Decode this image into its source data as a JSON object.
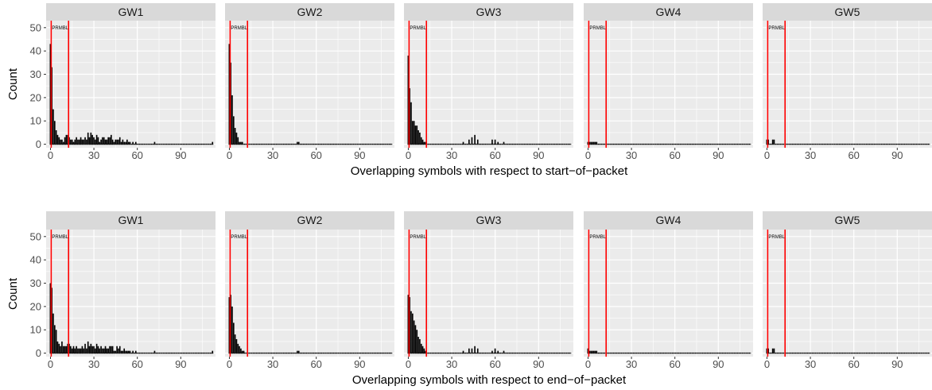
{
  "chart_data": [
    {
      "type": "bar",
      "xlabel": "Overlapping symbols with respect to start−of−packet",
      "ylabel": "Count",
      "facets": [
        "GW1",
        "GW2",
        "GW3",
        "GW4",
        "GW5"
      ],
      "xlim": [
        -3,
        114
      ],
      "ylim": [
        -1.5,
        53
      ],
      "xticks": [
        0,
        30,
        60,
        90
      ],
      "yticks": [
        0,
        10,
        20,
        30,
        40,
        50
      ],
      "vlines": [
        {
          "x": 0.5,
          "label": "PRMBL"
        },
        {
          "x": 12.5
        }
      ],
      "vline_color": "#ff0000",
      "grid": true,
      "panel_background": "#ebebeb",
      "strip_background": "#d9d9d9",
      "series": [
        {
          "facet": "GW1",
          "x": [
            0,
            1,
            2,
            3,
            4,
            5,
            6,
            7,
            8,
            9,
            10,
            11,
            12,
            13,
            14,
            15,
            16,
            17,
            18,
            19,
            20,
            21,
            22,
            23,
            24,
            25,
            26,
            27,
            28,
            29,
            30,
            31,
            32,
            33,
            34,
            35,
            36,
            37,
            38,
            39,
            40,
            41,
            42,
            43,
            44,
            45,
            46,
            47,
            48,
            49,
            50,
            51,
            52,
            53,
            54,
            55,
            56,
            57,
            58,
            59,
            60,
            72,
            112
          ],
          "values": [
            43,
            33,
            15,
            10,
            6,
            4,
            3,
            2,
            2,
            1,
            3,
            4,
            4,
            3,
            2,
            2,
            1,
            2,
            3,
            2,
            2,
            3,
            2,
            2,
            3,
            2,
            5,
            3,
            5,
            4,
            3,
            2,
            4,
            3,
            1,
            2,
            3,
            3,
            2,
            2,
            3,
            3,
            4,
            2,
            1,
            2,
            2,
            2,
            3,
            1,
            2,
            1,
            1,
            2,
            1,
            1,
            0,
            1,
            0,
            1,
            0,
            1,
            1
          ]
        },
        {
          "facet": "GW2",
          "x": [
            0,
            1,
            2,
            3,
            4,
            5,
            6,
            7,
            8,
            9,
            47,
            48
          ],
          "values": [
            43,
            35,
            21,
            12,
            7,
            5,
            3,
            1,
            1,
            1,
            1,
            1
          ]
        },
        {
          "facet": "GW3",
          "x": [
            0,
            1,
            2,
            3,
            4,
            5,
            6,
            7,
            8,
            9,
            10,
            11,
            12,
            38,
            42,
            44,
            46,
            48,
            58,
            60,
            62,
            66
          ],
          "values": [
            38,
            24,
            18,
            10,
            10,
            8,
            8,
            6,
            5,
            3,
            2,
            1,
            1,
            1,
            2,
            3,
            4,
            2,
            2,
            2,
            1,
            1
          ]
        },
        {
          "facet": "GW4",
          "x": [
            0,
            1,
            2,
            3,
            4,
            5,
            6
          ],
          "values": [
            1,
            1,
            1,
            1,
            1,
            1,
            1
          ]
        },
        {
          "facet": "GW5",
          "x": [
            0,
            1,
            4,
            5
          ],
          "values": [
            2,
            2,
            2,
            2
          ]
        }
      ]
    },
    {
      "type": "bar",
      "xlabel": "Overlapping symbols with respect to end−of−packet",
      "ylabel": "Count",
      "facets": [
        "GW1",
        "GW2",
        "GW3",
        "GW4",
        "GW5"
      ],
      "xlim": [
        -3,
        114
      ],
      "ylim": [
        -1.5,
        53
      ],
      "xticks": [
        0,
        30,
        60,
        90
      ],
      "yticks": [
        0,
        10,
        20,
        30,
        40,
        50
      ],
      "vlines": [
        {
          "x": 0.5,
          "label": "PRMBL"
        },
        {
          "x": 12.5
        }
      ],
      "vline_color": "#ff0000",
      "grid": true,
      "panel_background": "#ebebeb",
      "strip_background": "#d9d9d9",
      "series": [
        {
          "facet": "GW1",
          "x": [
            0,
            1,
            2,
            3,
            4,
            5,
            6,
            7,
            8,
            9,
            10,
            11,
            12,
            13,
            14,
            15,
            16,
            17,
            18,
            19,
            20,
            21,
            22,
            23,
            24,
            25,
            26,
            27,
            28,
            29,
            30,
            31,
            32,
            33,
            34,
            35,
            36,
            37,
            38,
            39,
            40,
            41,
            42,
            43,
            44,
            45,
            46,
            47,
            48,
            49,
            50,
            51,
            52,
            53,
            54,
            55,
            56,
            57,
            58,
            59,
            60,
            72,
            112
          ],
          "values": [
            30,
            28,
            17,
            12,
            10,
            5,
            4,
            3,
            5,
            3,
            3,
            3,
            4,
            4,
            3,
            2,
            3,
            2,
            3,
            2,
            2,
            2,
            3,
            2,
            4,
            2,
            5,
            3,
            4,
            3,
            3,
            2,
            4,
            3,
            2,
            3,
            2,
            2,
            3,
            2,
            2,
            3,
            3,
            3,
            1,
            1,
            3,
            2,
            3,
            1,
            1,
            2,
            1,
            1,
            1,
            1,
            0,
            1,
            0,
            1,
            0,
            1,
            1
          ]
        },
        {
          "facet": "GW2",
          "x": [
            0,
            1,
            2,
            3,
            4,
            5,
            6,
            7,
            8,
            9,
            10,
            47,
            48
          ],
          "values": [
            24,
            25,
            20,
            13,
            8,
            6,
            4,
            3,
            2,
            1,
            1,
            1,
            1
          ]
        },
        {
          "facet": "GW3",
          "x": [
            0,
            1,
            2,
            3,
            4,
            5,
            6,
            7,
            8,
            9,
            10,
            11,
            12,
            38,
            42,
            44,
            46,
            48,
            58,
            60,
            62,
            66
          ],
          "values": [
            25,
            24,
            18,
            17,
            14,
            12,
            10,
            7,
            6,
            4,
            3,
            2,
            1,
            1,
            2,
            2,
            3,
            2,
            1,
            2,
            1,
            1
          ]
        },
        {
          "facet": "GW4",
          "x": [
            0,
            1,
            2,
            3,
            4,
            5,
            6
          ],
          "values": [
            2,
            1,
            1,
            1,
            1,
            1,
            1
          ]
        },
        {
          "facet": "GW5",
          "x": [
            0,
            1,
            4,
            5
          ],
          "values": [
            2,
            2,
            2,
            2
          ]
        }
      ]
    }
  ]
}
